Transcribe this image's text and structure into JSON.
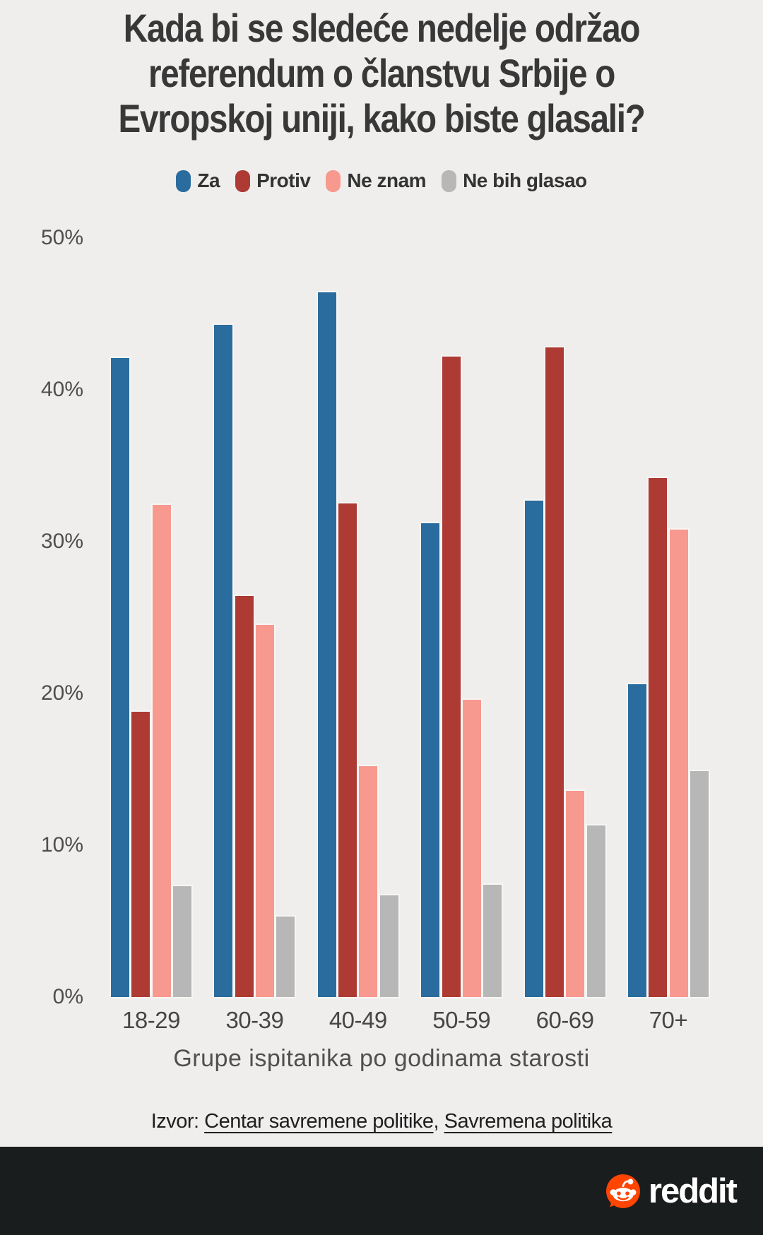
{
  "title": {
    "lines": [
      "Kada bi se sledeće nedelje održao",
      "referendum o članstvu Srbije o",
      "Evropskoj uniji, kako biste glasali?"
    ]
  },
  "axis": {
    "y_ticks": [
      "50%",
      "40%",
      "30%",
      "20%",
      "10%",
      "0%"
    ],
    "x_label": "Grupe ispitanika po godinama starosti"
  },
  "source": {
    "prefix": "Izvor: ",
    "link1": "Centar savremene politike",
    "separator": ", ",
    "link2": "Savremena politika"
  },
  "footer": {
    "brand": "reddit"
  },
  "colors": {
    "background": "#efeeec",
    "footer_band": "#1a1d1d",
    "reddit_orange": "#ff4500",
    "title_text": "#383838"
  },
  "chart_data": {
    "type": "bar",
    "title": "Kada bi se sledeće nedelje održao referendum o članstvu Srbije o Evropskoj uniji, kako biste glasali?",
    "categories": [
      "18-29",
      "30-39",
      "40-49",
      "50-59",
      "60-69",
      "70+"
    ],
    "series": [
      {
        "name": "Za",
        "color": "#2a6c9d",
        "values": [
          42.1,
          44.3,
          46.4,
          31.2,
          32.7,
          20.6
        ]
      },
      {
        "name": "Protiv",
        "color": "#ad3a33",
        "values": [
          18.8,
          26.4,
          32.5,
          42.2,
          42.8,
          34.2
        ]
      },
      {
        "name": "Ne znam",
        "color": "#f8998f",
        "values": [
          32.4,
          24.5,
          15.2,
          19.6,
          13.6,
          30.8
        ]
      },
      {
        "name": "Ne bih glasao",
        "color": "#b7b7b7",
        "values": [
          7.3,
          5.3,
          6.7,
          7.4,
          11.3,
          14.9
        ]
      }
    ],
    "xlabel": "Grupe ispitanika po godinama starosti",
    "ylabel": "",
    "ylim": [
      0,
      50
    ],
    "grid": false,
    "legend_position": "top"
  }
}
